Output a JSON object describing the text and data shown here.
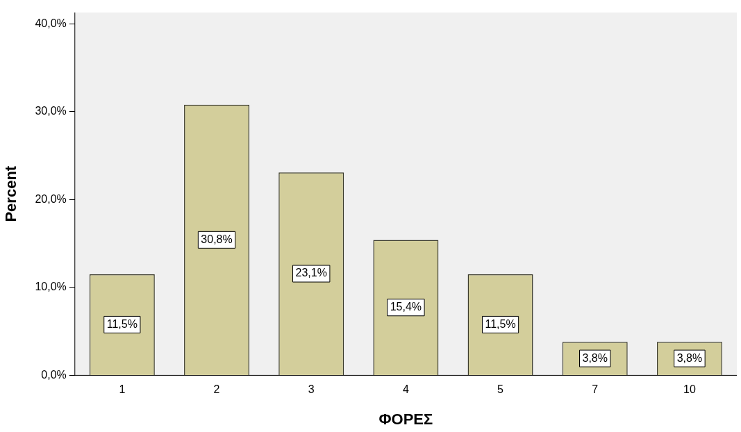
{
  "chart_data": {
    "type": "bar",
    "xlabel": "ΦΟΡΕΣ",
    "ylabel": "Percent",
    "categories": [
      "1",
      "2",
      "3",
      "4",
      "5",
      "7",
      "10"
    ],
    "values": [
      11.5,
      30.8,
      23.1,
      15.4,
      11.5,
      3.8,
      3.8
    ],
    "value_labels": [
      "11,5%",
      "30,8%",
      "23,1%",
      "15,4%",
      "11,5%",
      "3,8%",
      "3,8%"
    ],
    "color": "#d3ce9b",
    "ylim": [
      0,
      41.3
    ],
    "yticks": [
      {
        "value": 0,
        "label": "0,0%"
      },
      {
        "value": 10,
        "label": "10,0%"
      },
      {
        "value": 20,
        "label": "20,0%"
      },
      {
        "value": 30,
        "label": "30,0%"
      },
      {
        "value": 40,
        "label": "40,0%"
      }
    ],
    "grid": false,
    "legend": false
  }
}
